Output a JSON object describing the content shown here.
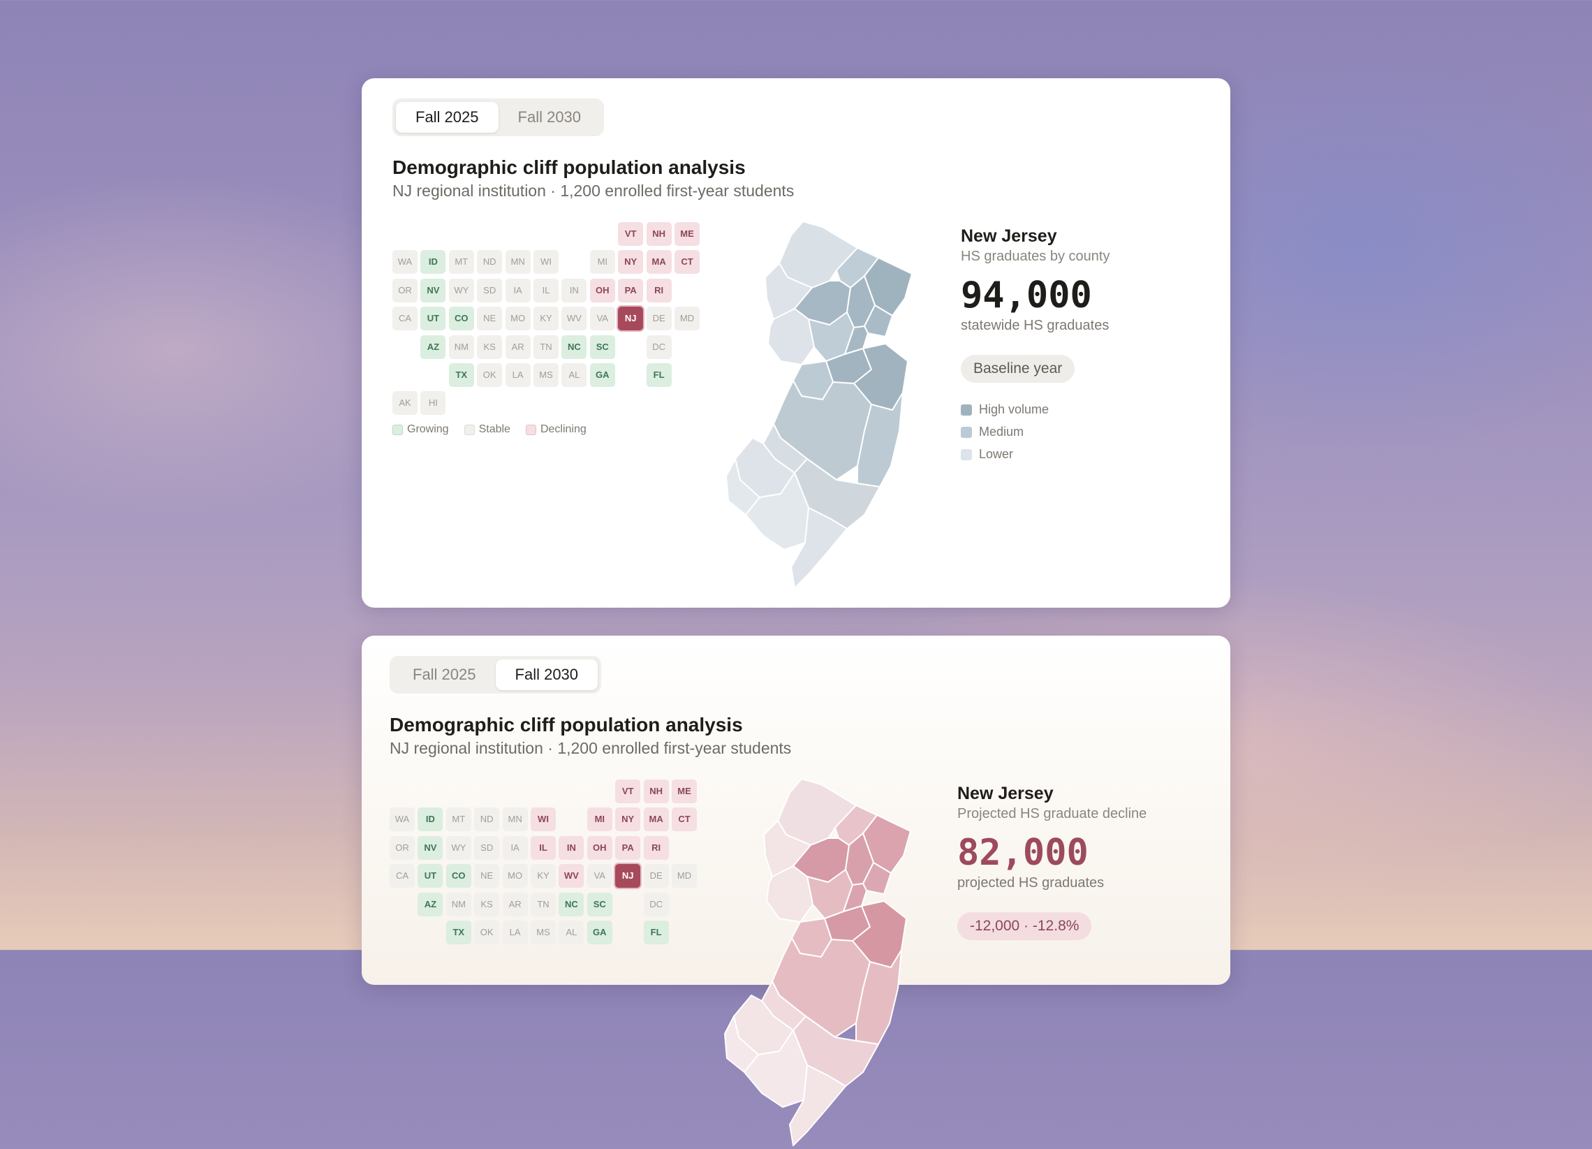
{
  "colors": {
    "growing": "#dbeee0",
    "stable": "#f1f0ed",
    "declining": "#f5dfe3",
    "highlight": "#a64a5b",
    "high_volume": "#9fb3bf",
    "medium": "#bccad3",
    "lower": "#dde3e8"
  },
  "cards": [
    {
      "tabs": [
        {
          "label": "Fall 2025"
        },
        {
          "label": "Fall 2030"
        }
      ],
      "active_tab": 0,
      "title": "Demographic cliff population analysis",
      "subtitle": "NJ regional institution · 1,200 enrolled first-year students",
      "legend": [
        {
          "label": "Growing",
          "status": "g"
        },
        {
          "label": "Stable",
          "status": "s"
        },
        {
          "label": "Declining",
          "status": "d"
        }
      ],
      "states": [
        {
          "code": "VT",
          "s": "d"
        },
        {
          "code": "NH",
          "s": "d"
        },
        {
          "code": "ME",
          "s": "d"
        },
        {
          "code": "WA",
          "s": "s"
        },
        {
          "code": "ID",
          "s": "g"
        },
        {
          "code": "MT",
          "s": "s"
        },
        {
          "code": "ND",
          "s": "s"
        },
        {
          "code": "MN",
          "s": "s"
        },
        {
          "code": "WI",
          "s": "s"
        },
        {
          "code": "MI",
          "s": "s"
        },
        {
          "code": "NY",
          "s": "d"
        },
        {
          "code": "MA",
          "s": "d"
        },
        {
          "code": "CT",
          "s": "d"
        },
        {
          "code": "OR",
          "s": "s"
        },
        {
          "code": "NV",
          "s": "g"
        },
        {
          "code": "WY",
          "s": "s"
        },
        {
          "code": "SD",
          "s": "s"
        },
        {
          "code": "IA",
          "s": "s"
        },
        {
          "code": "IL",
          "s": "s"
        },
        {
          "code": "IN",
          "s": "s"
        },
        {
          "code": "OH",
          "s": "d"
        },
        {
          "code": "PA",
          "s": "d"
        },
        {
          "code": "RI",
          "s": "d"
        },
        {
          "code": "CA",
          "s": "s"
        },
        {
          "code": "UT",
          "s": "g"
        },
        {
          "code": "CO",
          "s": "g"
        },
        {
          "code": "NE",
          "s": "s"
        },
        {
          "code": "MO",
          "s": "s"
        },
        {
          "code": "KY",
          "s": "s"
        },
        {
          "code": "WV",
          "s": "s"
        },
        {
          "code": "VA",
          "s": "s"
        },
        {
          "code": "NJ",
          "s": "h"
        },
        {
          "code": "DE",
          "s": "s"
        },
        {
          "code": "MD",
          "s": "s"
        },
        {
          "code": "AZ",
          "s": "g"
        },
        {
          "code": "NM",
          "s": "s"
        },
        {
          "code": "KS",
          "s": "s"
        },
        {
          "code": "AR",
          "s": "s"
        },
        {
          "code": "TN",
          "s": "s"
        },
        {
          "code": "NC",
          "s": "g"
        },
        {
          "code": "SC",
          "s": "g"
        },
        {
          "code": "DC",
          "s": "s"
        },
        {
          "code": "TX",
          "s": "g"
        },
        {
          "code": "OK",
          "s": "s"
        },
        {
          "code": "LA",
          "s": "s"
        },
        {
          "code": "MS",
          "s": "s"
        },
        {
          "code": "AL",
          "s": "s"
        },
        {
          "code": "GA",
          "s": "g"
        },
        {
          "code": "FL",
          "s": "g"
        },
        {
          "code": "AK",
          "s": "s"
        },
        {
          "code": "HI",
          "s": "s"
        }
      ],
      "side": {
        "state_name": "New Jersey",
        "metric_label": "HS graduates by county",
        "value": "94,000",
        "value_caption": "statewide HS graduates",
        "badge": "Baseline year",
        "map_legend": [
          {
            "label": "High volume",
            "color": "#9fb3bf"
          },
          {
            "label": "Medium",
            "color": "#bccad3"
          },
          {
            "label": "Lower",
            "color": "#dde3e8"
          }
        ]
      }
    },
    {
      "tabs": [
        {
          "label": "Fall 2025"
        },
        {
          "label": "Fall 2030"
        }
      ],
      "active_tab": 1,
      "title": "Demographic cliff population analysis",
      "subtitle": "NJ regional institution · 1,200 enrolled first-year students",
      "states": [
        {
          "code": "VT",
          "s": "d"
        },
        {
          "code": "NH",
          "s": "d"
        },
        {
          "code": "ME",
          "s": "d"
        },
        {
          "code": "WA",
          "s": "s"
        },
        {
          "code": "ID",
          "s": "g"
        },
        {
          "code": "MT",
          "s": "s"
        },
        {
          "code": "ND",
          "s": "s"
        },
        {
          "code": "MN",
          "s": "s"
        },
        {
          "code": "WI",
          "s": "d"
        },
        {
          "code": "MI",
          "s": "d"
        },
        {
          "code": "NY",
          "s": "d"
        },
        {
          "code": "MA",
          "s": "d"
        },
        {
          "code": "CT",
          "s": "d"
        },
        {
          "code": "OR",
          "s": "s"
        },
        {
          "code": "NV",
          "s": "g"
        },
        {
          "code": "WY",
          "s": "s"
        },
        {
          "code": "SD",
          "s": "s"
        },
        {
          "code": "IA",
          "s": "s"
        },
        {
          "code": "IL",
          "s": "d"
        },
        {
          "code": "IN",
          "s": "d"
        },
        {
          "code": "OH",
          "s": "d"
        },
        {
          "code": "PA",
          "s": "d"
        },
        {
          "code": "RI",
          "s": "d"
        },
        {
          "code": "CA",
          "s": "s"
        },
        {
          "code": "UT",
          "s": "g"
        },
        {
          "code": "CO",
          "s": "g"
        },
        {
          "code": "NE",
          "s": "s"
        },
        {
          "code": "MO",
          "s": "s"
        },
        {
          "code": "KY",
          "s": "s"
        },
        {
          "code": "WV",
          "s": "d"
        },
        {
          "code": "VA",
          "s": "s"
        },
        {
          "code": "NJ",
          "s": "h"
        },
        {
          "code": "DE",
          "s": "s"
        },
        {
          "code": "MD",
          "s": "s"
        },
        {
          "code": "AZ",
          "s": "g"
        },
        {
          "code": "NM",
          "s": "s"
        },
        {
          "code": "KS",
          "s": "s"
        },
        {
          "code": "AR",
          "s": "s"
        },
        {
          "code": "TN",
          "s": "s"
        },
        {
          "code": "NC",
          "s": "g"
        },
        {
          "code": "SC",
          "s": "g"
        },
        {
          "code": "DC",
          "s": "s"
        },
        {
          "code": "TX",
          "s": "g"
        },
        {
          "code": "OK",
          "s": "s"
        },
        {
          "code": "LA",
          "s": "s"
        },
        {
          "code": "MS",
          "s": "s"
        },
        {
          "code": "AL",
          "s": "s"
        },
        {
          "code": "GA",
          "s": "g"
        },
        {
          "code": "FL",
          "s": "g"
        }
      ],
      "side": {
        "state_name": "New Jersey",
        "metric_label": "Projected HS graduate decline",
        "value": "82,000",
        "value_caption": "projected HS graduates",
        "badge": "-12,000 · -12.8%"
      }
    }
  ]
}
